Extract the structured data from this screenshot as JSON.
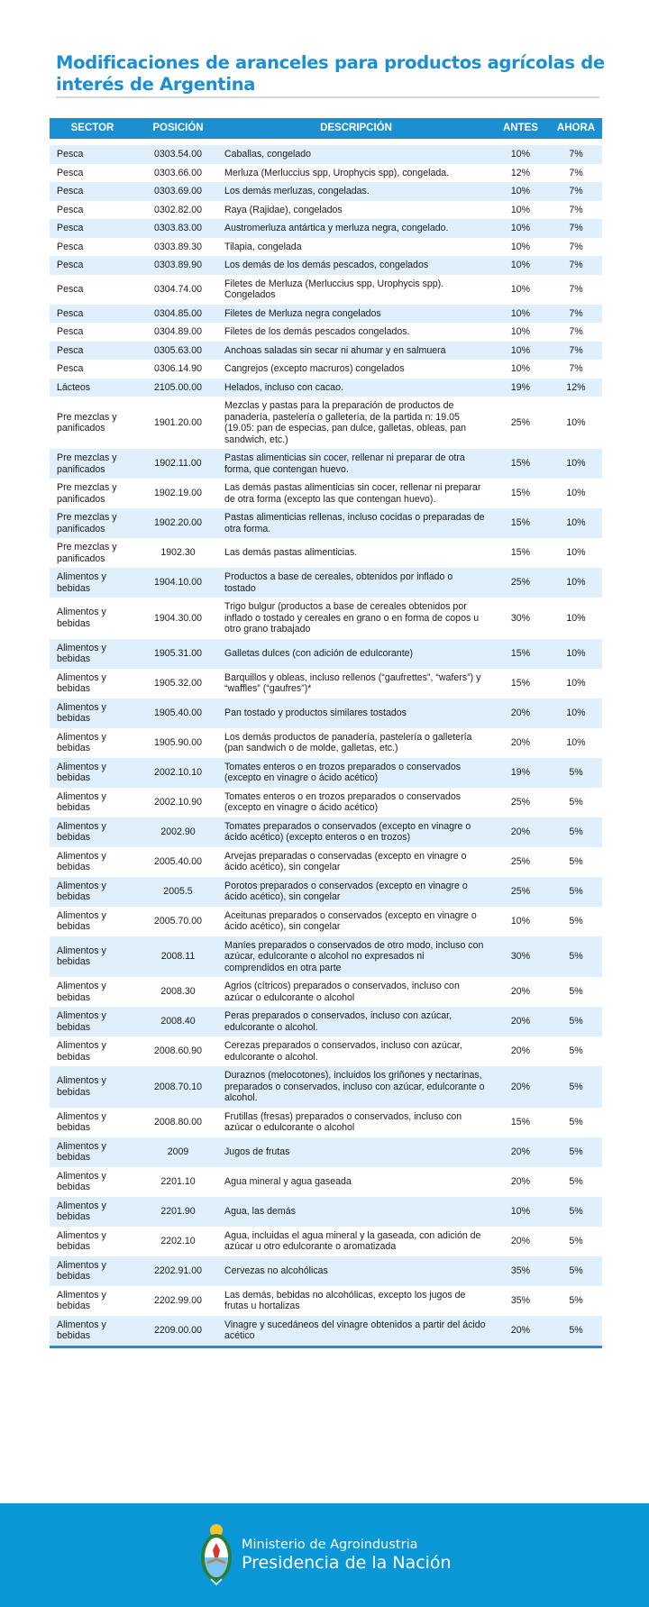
{
  "title": "Modificaciones de aranceles para productos agrícolas de interés de Argentina",
  "colors": {
    "accent": "#1b8fd2",
    "row_shade": "#dfeffb",
    "footer": "#0997d6"
  },
  "table": {
    "headers": [
      "SECTOR",
      "POSICIÓN",
      "DESCRIPCIÓN",
      "ANTES",
      "AHORA"
    ],
    "rows": [
      [
        "Pesca",
        "0303.54.00",
        "Caballas, congelado",
        "10%",
        "7%"
      ],
      [
        "Pesca",
        "0303.66.00",
        "Merluza (Merluccius spp, Urophycis spp), congelada.",
        "12%",
        "7%"
      ],
      [
        "Pesca",
        "0303.69.00",
        "Los demás merluzas, congeladas.",
        "10%",
        "7%"
      ],
      [
        "Pesca",
        "0302.82.00",
        "Raya (Rajidae), congelados",
        "10%",
        "7%"
      ],
      [
        "Pesca",
        "0303.83.00",
        "Austromerluza antártica y merluza negra, congelado.",
        "10%",
        "7%"
      ],
      [
        "Pesca",
        "0303.89.30",
        "Tilapia, congelada",
        "10%",
        "7%"
      ],
      [
        "Pesca",
        "0303.89.90",
        "Los demás de los demás pescados, congelados",
        "10%",
        "7%"
      ],
      [
        "Pesca",
        "0304.74.00",
        "Filetes de Merluza (Merluccius spp, Urophycis spp). Congelados",
        "10%",
        "7%"
      ],
      [
        "Pesca",
        "0304.85.00",
        "Filetes de Merluza negra congelados",
        "10%",
        "7%"
      ],
      [
        "Pesca",
        "0304.89.00",
        "Filetes de los demás pescados congelados.",
        "10%",
        "7%"
      ],
      [
        "Pesca",
        "0305.63.00",
        "Anchoas saladas sin secar ni ahumar y en salmuera",
        "10%",
        "7%"
      ],
      [
        "Pesca",
        "0306.14.90",
        "Cangrejos (excepto macruros) congelados",
        "10%",
        "7%"
      ],
      [
        "Lácteos",
        "2105.00.00",
        "Helados, incluso con cacao.",
        "19%",
        "12%"
      ],
      [
        "Pre mezclas y panificados",
        "1901.20.00",
        "Mezclas y pastas para la preparación de productos de panadería, pastelería o galletería, de la partida n: 19.05 (19.05: pan de especias, pan dulce, galletas, obleas, pan sandwich, etc.)",
        "25%",
        "10%"
      ],
      [
        "Pre mezclas y panificados",
        "1902.11.00",
        "Pastas alimenticias sin cocer, rellenar ni preparar de otra forma, que contengan huevo.",
        "15%",
        "10%"
      ],
      [
        "Pre mezclas y panificados",
        "1902.19.00",
        "Las demás pastas alimenticias sin cocer, rellenar ni preparar de otra forma (excepto las que contengan huevo).",
        "15%",
        "10%"
      ],
      [
        "Pre mezclas y panificados",
        "1902.20.00",
        "Pastas alimenticias rellenas, incluso cocidas o preparadas de otra forma.",
        "15%",
        "10%"
      ],
      [
        "Pre mezclas y panificados",
        "1902.30",
        "Las demás pastas alimenticias.",
        "15%",
        "10%"
      ],
      [
        "Alimentos y bebidas",
        "1904.10.00",
        "Productos a base de cereales, obtenidos por inflado o tostado",
        "25%",
        "10%"
      ],
      [
        "Alimentos y bebidas",
        "1904.30.00",
        "Trigo bulgur (productos a base de cereales obtenidos por inflado o tostado y cereales en grano o en forma de copos u otro grano trabajado",
        "30%",
        "10%"
      ],
      [
        "Alimentos y bebidas",
        "1905.31.00",
        "Galletas dulces (con adición de edulcorante)",
        "15%",
        "10%"
      ],
      [
        "Alimentos y bebidas",
        "1905.32.00",
        "Barquillos y obleas, incluso rellenos (“gaufrettes”, “wafers”) y “waffles” (“gaufres”)*",
        "15%",
        "10%"
      ],
      [
        "Alimentos y bebidas",
        "1905.40.00",
        "Pan tostado y productos similares tostados",
        "20%",
        "10%"
      ],
      [
        "Alimentos y bebidas",
        "1905.90.00",
        "Los demás productos de panadería, pastelería o galletería (pan sandwich o de molde, galletas, etc.)",
        "20%",
        "10%"
      ],
      [
        "Alimentos y bebidas",
        "2002.10.10",
        "Tomates enteros o en trozos preparados o conservados (excepto en vinagre o ácido acético)",
        "19%",
        "5%"
      ],
      [
        "Alimentos y bebidas",
        "2002.10.90",
        "Tomates enteros o en trozos preparados o conservados (excepto en vinagre o ácido acético)",
        "25%",
        "5%"
      ],
      [
        "Alimentos y bebidas",
        "2002.90",
        "Tomates preparados o conservados (excepto en vinagre o ácido acético) (excepto enteros o en trozos)",
        "20%",
        "5%"
      ],
      [
        "Alimentos y bebidas",
        "2005.40.00",
        "Arvejas preparadas o conservadas (excepto en vinagre o ácido acético), sin congelar",
        "25%",
        "5%"
      ],
      [
        "Alimentos y bebidas",
        "2005.5",
        "Porotos preparados o conservados (excepto en vinagre o ácido acético), sin congelar",
        "25%",
        "5%"
      ],
      [
        "Alimentos y bebidas",
        "2005.70.00",
        "Aceitunas preparados o conservados (excepto en vinagre o ácido acético), sin congelar",
        "10%",
        "5%"
      ],
      [
        "Alimentos y bebidas",
        "2008.11",
        "Maníes preparados o conservados de otro modo, incluso con azúcar, edulcorante o alcohol no expresados ni comprendidos en otra parte",
        "30%",
        "5%"
      ],
      [
        "Alimentos y bebidas",
        "2008.30",
        "Agrios (cítricos) preparados o conservados, incluso con azúcar o edulcorante o alcohol",
        "20%",
        "5%"
      ],
      [
        "Alimentos y bebidas",
        "2008.40",
        "Peras preparados o conservados, incluso con azúcar, edulcorante o alcohol.",
        "20%",
        "5%"
      ],
      [
        "Alimentos y bebidas",
        "2008.60.90",
        "Cerezas preparados o conservados, incluso con azúcar, edulcorante o alcohol.",
        "20%",
        "5%"
      ],
      [
        "Alimentos y bebidas",
        "2008.70.10",
        "Duraznos (melocotones), incluidos los griñones y nectarinas, preparados o conservados, incluso con azúcar, edulcorante o alcohol.",
        "20%",
        "5%"
      ],
      [
        "Alimentos y bebidas",
        "2008.80.00",
        "Frutillas (fresas) preparados o conservados, incluso con azúcar o edulcorante o alcohol",
        "15%",
        "5%"
      ],
      [
        "Alimentos y bebidas",
        "2009",
        "Jugos de frutas",
        "20%",
        "5%"
      ],
      [
        "Alimentos y bebidas",
        "2201.10",
        "Agua mineral y agua gaseada",
        "20%",
        "5%"
      ],
      [
        "Alimentos y bebidas",
        "2201.90",
        "Agua, las demás",
        "10%",
        "5%"
      ],
      [
        "Alimentos y bebidas",
        "2202.10",
        "Agua, incluidas el agua mineral y la gaseada, con adición de azúcar u otro edulcorante o aromatizada",
        "20%",
        "5%"
      ],
      [
        "Alimentos y bebidas",
        "2202.91.00",
        "Cervezas no alcohólicas",
        "35%",
        "5%"
      ],
      [
        "Alimentos y bebidas",
        "2202.99.00",
        "Las demás, bebidas no alcohólicas, excepto los jugos de frutas u hortalizas",
        "35%",
        "5%"
      ],
      [
        "Alimentos y bebidas",
        "2209.00.00",
        "Vinagre y sucedáneos del vinagre obtenidos a partir del ácido acético",
        "20%",
        "5%"
      ]
    ]
  },
  "footer": {
    "ministry": "Ministerio de Agroindustria",
    "presidency": "Presidencia de la Nación",
    "logo_icon": "argentina-coat-of-arms-icon"
  }
}
